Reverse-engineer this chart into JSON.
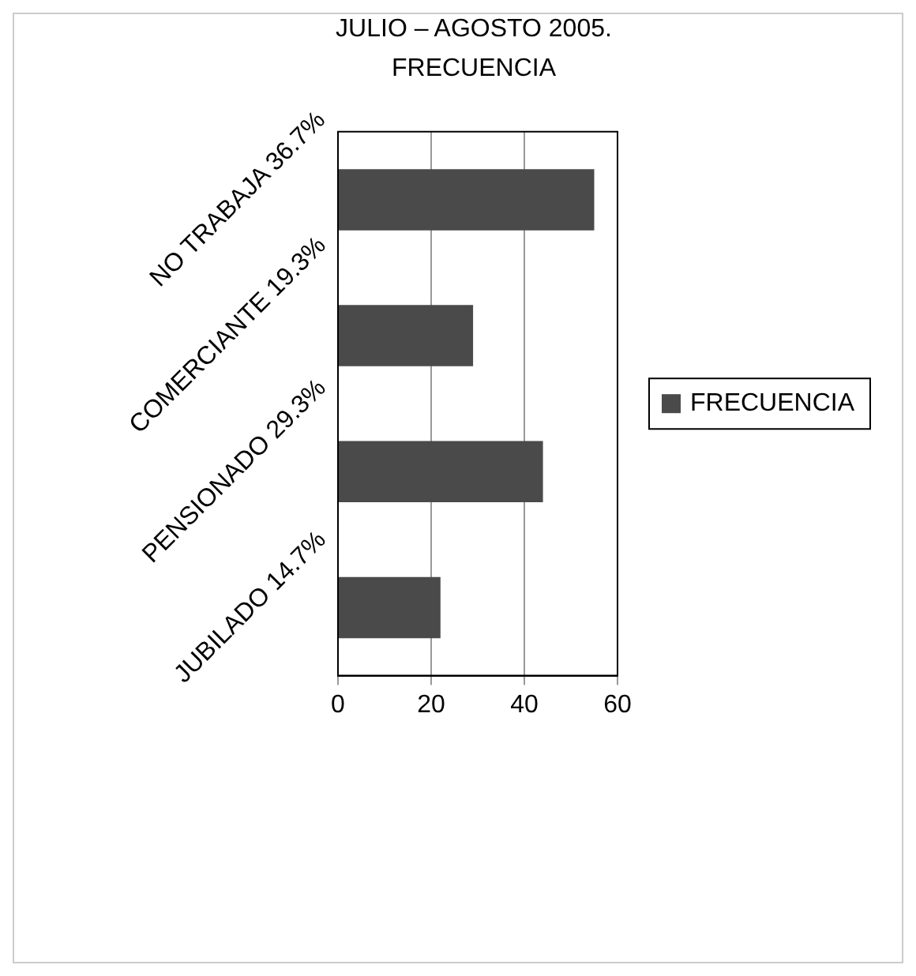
{
  "chart_data": {
    "type": "bar",
    "orientation": "horizontal",
    "title": "JULIO – AGOSTO 2005.",
    "subtitle": "FRECUENCIA",
    "categories": [
      "NO TRABAJA 36.7%",
      "COMERCIANTE 19.3%",
      "PENSIONADO 29.3%",
      "JUBILADO 14.7%"
    ],
    "series": [
      {
        "name": "FRECUENCIA",
        "color": "#4a4a4a",
        "values": [
          55,
          29,
          44,
          22
        ]
      }
    ],
    "xlim": [
      0,
      60
    ],
    "xticks": [
      0,
      20,
      40,
      60
    ],
    "grid": "x",
    "legend": "right"
  }
}
